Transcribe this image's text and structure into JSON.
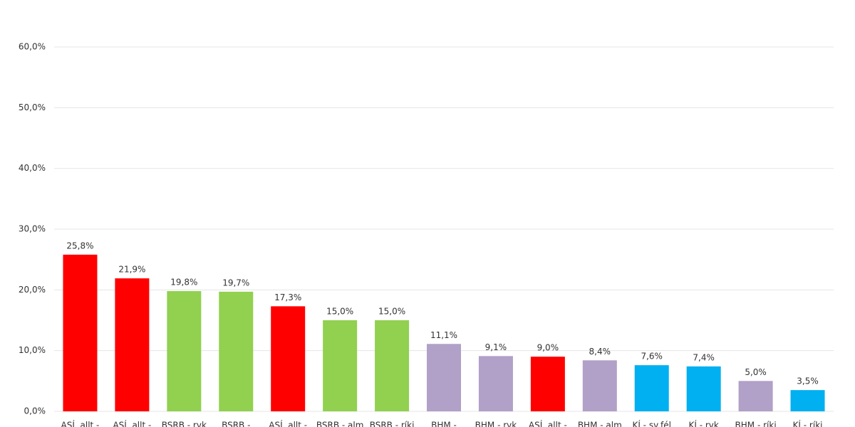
{
  "chart_data": {
    "type": "bar",
    "categories": [
      "ASÍ, allt -",
      "ASÍ, allt -",
      "BSRB - rvk",
      "BSRB -",
      "ASÍ, allt -",
      "BSRB - alm",
      "BSRB - ríki",
      "BHM -",
      "BHM - rvk",
      "ASÍ, allt -",
      "BHM - alm",
      "KÍ - sv.fél",
      "KÍ - rvk",
      "BHM - ríki",
      "KÍ - ríki"
    ],
    "values": [
      25.8,
      21.9,
      19.8,
      19.7,
      17.3,
      15.0,
      15.0,
      11.1,
      9.1,
      9.0,
      8.4,
      7.6,
      7.4,
      5.0,
      3.5
    ],
    "value_labels": [
      "25,8%",
      "21,9%",
      "19,8%",
      "19,7%",
      "17,3%",
      "15,0%",
      "15,0%",
      "11,1%",
      "9,1%",
      "9,0%",
      "8,4%",
      "7,6%",
      "7,4%",
      "5,0%",
      "3,5%"
    ],
    "colors": [
      "#ff0000",
      "#ff0000",
      "#92d050",
      "#92d050",
      "#ff0000",
      "#92d050",
      "#92d050",
      "#b1a0c7",
      "#b1a0c7",
      "#ff0000",
      "#b1a0c7",
      "#00b0f0",
      "#00b0f0",
      "#b1a0c7",
      "#00b0f0"
    ],
    "ylim": [
      0,
      60
    ],
    "yticks": [
      {
        "value": 0,
        "label": "0,0%"
      },
      {
        "value": 10,
        "label": "10,0%"
      },
      {
        "value": 20,
        "label": "20,0%"
      },
      {
        "value": 30,
        "label": "30,0%"
      },
      {
        "value": 40,
        "label": "40,0%"
      },
      {
        "value": 50,
        "label": "50,0%"
      },
      {
        "value": 60,
        "label": "60,0%"
      }
    ],
    "grid": true
  }
}
